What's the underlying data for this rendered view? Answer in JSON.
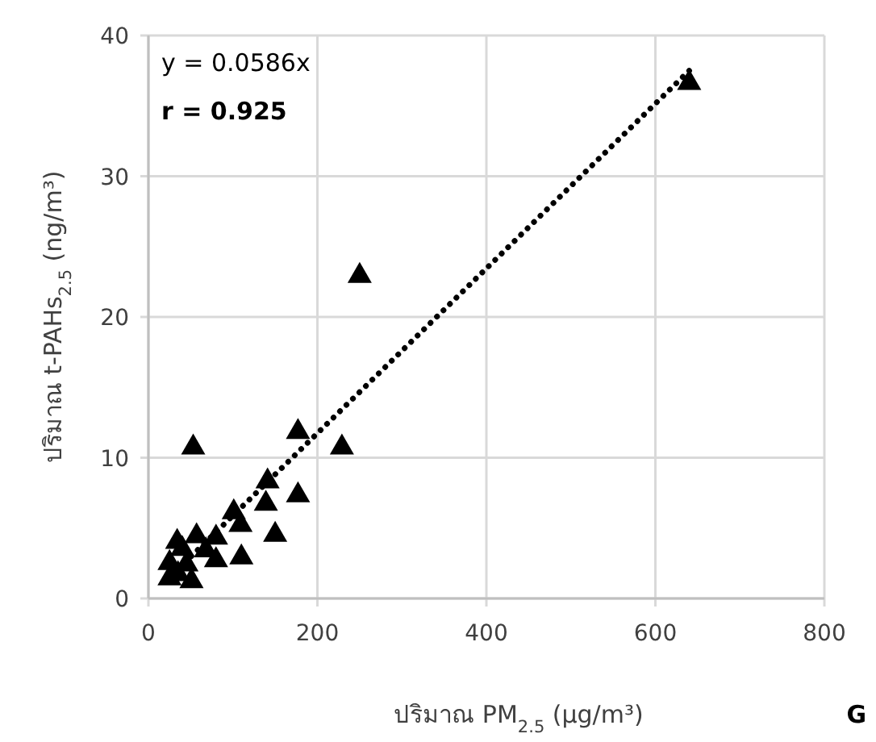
{
  "chart_data": {
    "type": "scatter",
    "xlabel": "ปริมาณ PM$_{2.5}$ (µg/m³)",
    "ylabel": "ปริมาณ t-PAHs$_{2.5}$  (ng/m³)",
    "xlim": [
      0,
      800
    ],
    "ylim": [
      0,
      40
    ],
    "xticks": [
      0,
      200,
      400,
      600,
      800
    ],
    "yticks": [
      0,
      10,
      20,
      30,
      40
    ],
    "grid": true,
    "marker": "triangle",
    "series": [
      {
        "color": "#000000",
        "x": [
          640,
          250,
          53,
          177,
          229,
          177,
          141,
          139,
          150,
          101,
          109,
          110,
          80,
          80,
          57,
          34,
          25,
          25,
          51,
          40,
          45,
          35,
          68
        ],
        "values": [
          36.7,
          23.0,
          10.8,
          11.9,
          10.8,
          7.4,
          8.4,
          6.8,
          4.6,
          6.2,
          5.3,
          3.0,
          2.8,
          4.4,
          4.5,
          4.1,
          2.6,
          1.5,
          1.3,
          3.6,
          2.5,
          1.8,
          3.5
        ]
      },
      {
        "type": "line",
        "color": "#000000",
        "line_style": "dotted",
        "marker": "none",
        "x": [
          20,
          640
        ],
        "values": [
          1.2,
          37.5
        ]
      }
    ],
    "annotations": [
      "y = 0.0586x",
      "r = 0.925",
      "G"
    ]
  }
}
